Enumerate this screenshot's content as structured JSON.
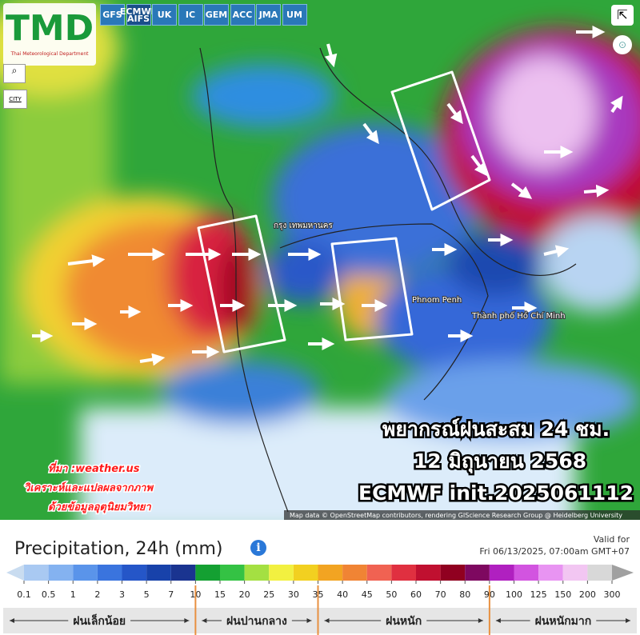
{
  "header": {
    "logo": "TMD",
    "logo_subtitle": "Thai Meteorological Department",
    "models": [
      "GFS",
      "ECMWF AIFS",
      "UK",
      "IC",
      "GEM",
      "ACC",
      "JMA",
      "UM"
    ]
  },
  "map": {
    "city_toggle": "CITY",
    "places": [
      "กรุง เทพมหานคร",
      "Phnom Penh",
      "Thành phố Hồ Chí Minh"
    ],
    "overlay_title": [
      "พยากรณ์ฝนสะสม 24 ชม.",
      "12 มิถุนายน 2568",
      "ECMWF init.2025061112"
    ],
    "source_notes": [
      "ที่มา :weather.us",
      "วิเคราะห์และแปลผลจากภาพ",
      "ด้วยข้อมูลอุตุนิยมวิทยา"
    ],
    "attribution": "Map data © OpenStreetMap contributors, rendering GIScience Research Group @ Heidelberg University"
  },
  "legend": {
    "title": "Precipitation, 24h (mm)",
    "valid_label": "Valid for",
    "valid_time": "Fri 06/13/2025, 07:00am GMT+07",
    "scale": {
      "labels": [
        "0.1",
        "0.5",
        "1",
        "2",
        "3",
        "5",
        "7",
        "10",
        "15",
        "20",
        "25",
        "30",
        "35",
        "40",
        "45",
        "50",
        "60",
        "70",
        "80",
        "90",
        "100",
        "125",
        "150",
        "200",
        "300"
      ],
      "colors": [
        "#c9dcf0",
        "#a9c9f2",
        "#84b2f0",
        "#5a94ea",
        "#3a74de",
        "#2556c8",
        "#1842aa",
        "#1a3490",
        "#14a032",
        "#34c244",
        "#a4e042",
        "#f2f040",
        "#f2d020",
        "#f2a422",
        "#f08434",
        "#f06252",
        "#e03040",
        "#c01030",
        "#900020",
        "#7e0860",
        "#b020c0",
        "#d254e0",
        "#e894f2",
        "#f2c6f2",
        "#d8d8d8",
        "#a0a0a0"
      ]
    },
    "categories": [
      "ฝนเล็กน้อย",
      "ฝนปานกลาง",
      "ฝนหนัก",
      "ฝนหนักมาก"
    ]
  }
}
